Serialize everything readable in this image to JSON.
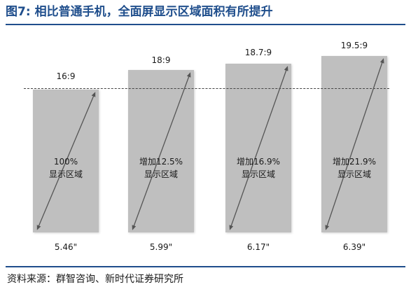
{
  "figure": {
    "label": "图7:",
    "title": "相比普通手机，全面屏显示区域面积有所提升"
  },
  "phones": [
    {
      "ratio": "16:9",
      "size": "5.46\"",
      "area_line1": "100%",
      "area_line2": "显示区域"
    },
    {
      "ratio": "18:9",
      "size": "5.99\"",
      "area_line1": "增加12.5%",
      "area_line2": "显示区域"
    },
    {
      "ratio": "18.7:9",
      "size": "6.17\"",
      "area_line1": "增加16.9%",
      "area_line2": "显示区域"
    },
    {
      "ratio": "19.5:9",
      "size": "6.39\"",
      "area_line1": "增加21.9%",
      "area_line2": "显示区域"
    }
  ],
  "source": "资料来源：群智咨询、新时代证券研究所",
  "colors": {
    "title": "#1f4e8c",
    "phone_fill": "#bfbfbf",
    "arrow": "#555555",
    "dashed_line": "#444444"
  }
}
